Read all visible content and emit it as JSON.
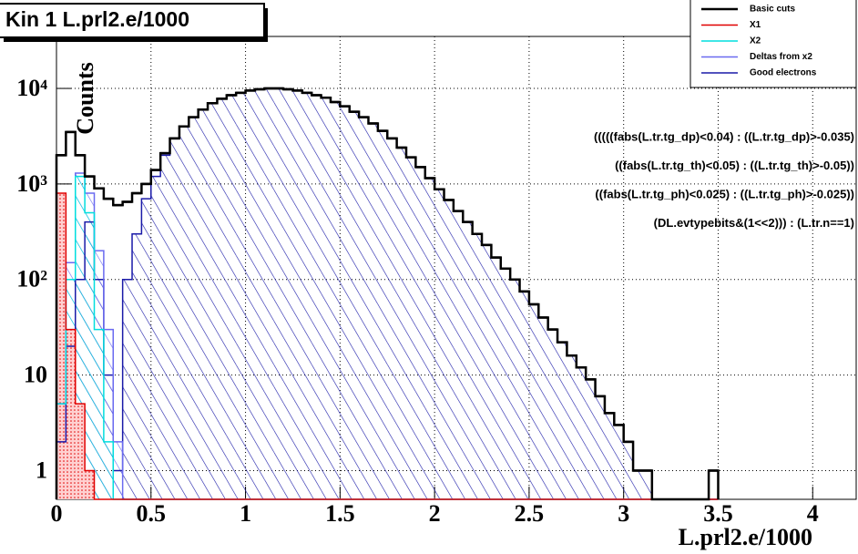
{
  "chart_data": {
    "type": "histogram",
    "title": "Kin 1 L.prl2.e/1000",
    "x_label": "L.prl2.e/1000",
    "y_label": "Counts",
    "annotations": [
      "(((((fabs(L.tr.tg_dp)<0.04)   : ((L.tr.tg_dp)>-0.035)",
      "((fabs(L.tr.tg_th)<0.05)  : ((L.tr.tg_th)>-0.05))",
      "((fabs(L.tr.tg_ph)<0.025)  : ((L.tr.tg_ph)>-0.025))",
      "(DL.evtypebits&(1<<2)))  : (L.tr.n==1)"
    ],
    "bins": [
      0,
      0.05,
      0.1,
      0.15,
      0.2,
      0.25,
      0.3,
      0.35,
      0.4,
      0.45,
      0.5,
      0.55,
      0.6,
      0.65,
      0.7,
      0.75,
      0.8,
      0.85,
      0.9,
      0.95,
      1,
      1.05,
      1.1,
      1.15,
      1.2,
      1.25,
      1.3,
      1.35,
      1.4,
      1.45,
      1.5,
      1.55,
      1.6,
      1.65,
      1.7,
      1.75,
      1.8,
      1.85,
      1.9,
      1.95,
      2,
      2.05,
      2.1,
      2.15,
      2.2,
      2.25,
      2.3,
      2.35,
      2.4,
      2.45,
      2.5,
      2.55,
      2.6,
      2.65,
      2.7,
      2.75,
      2.8,
      2.85,
      2.9,
      2.95,
      3,
      3.05,
      3.1,
      3.15,
      3.2,
      3.25,
      3.3,
      3.35,
      3.4,
      3.45,
      3.5
    ],
    "series": [
      {
        "name": "Basic cuts",
        "color": "#000000",
        "fill": "none",
        "values": [
          2000,
          3500,
          2000,
          1200,
          900,
          700,
          600,
          650,
          800,
          1000,
          1400,
          2100,
          3000,
          4000,
          5000,
          6000,
          7000,
          7800,
          8500,
          9000,
          9500,
          9800,
          10000,
          10000,
          9800,
          9500,
          9000,
          8500,
          8000,
          7200,
          6500,
          5700,
          5000,
          4300,
          3600,
          3000,
          2400,
          1900,
          1500,
          1150,
          880,
          680,
          520,
          400,
          300,
          230,
          170,
          130,
          100,
          75,
          55,
          40,
          30,
          22,
          16,
          12,
          9,
          6,
          4,
          3,
          2,
          1,
          1,
          0,
          0,
          0,
          0,
          0,
          0,
          1
        ]
      },
      {
        "name": "X1",
        "color": "#e00000",
        "fill": "dots",
        "values": [
          800,
          30,
          5,
          1,
          0,
          0,
          0,
          0,
          0,
          0,
          0,
          0,
          0,
          0,
          0,
          0,
          0,
          0,
          0,
          0,
          0,
          0,
          0,
          0,
          0,
          0,
          0,
          0,
          0,
          0,
          0,
          0,
          0,
          0,
          0,
          0,
          0,
          0,
          0,
          0,
          0,
          0,
          0,
          0,
          0,
          0,
          0,
          0,
          0,
          0,
          0,
          0,
          0,
          0,
          0,
          0,
          0,
          0,
          0,
          0,
          0,
          0,
          0,
          0,
          0,
          0,
          0,
          0,
          0,
          0
        ]
      },
      {
        "name": "X2",
        "color": "#00dede",
        "fill": "hatch",
        "values": [
          5,
          100,
          1200,
          500,
          30,
          2,
          0,
          0,
          0,
          0,
          0,
          0,
          0,
          0,
          0,
          0,
          0,
          0,
          0,
          0,
          0,
          0,
          0,
          0,
          0,
          0,
          0,
          0,
          0,
          0,
          0,
          0,
          0,
          0,
          0,
          0,
          0,
          0,
          0,
          0,
          0,
          0,
          0,
          0,
          0,
          0,
          0,
          0,
          0,
          0,
          0,
          0,
          0,
          0,
          0,
          0,
          0,
          0,
          0,
          0,
          0,
          0,
          0,
          0,
          0,
          0,
          0,
          0,
          0,
          0
        ]
      },
      {
        "name": "Deltas from x2",
        "color": "#6a6af0",
        "fill": "hatch",
        "values": [
          5,
          150,
          1300,
          800,
          200,
          30,
          2,
          0,
          0,
          0,
          0,
          0,
          0,
          0,
          0,
          0,
          0,
          0,
          0,
          0,
          0,
          0,
          0,
          0,
          0,
          0,
          0,
          0,
          0,
          0,
          0,
          0,
          0,
          0,
          0,
          0,
          0,
          0,
          0,
          0,
          0,
          0,
          0,
          0,
          0,
          0,
          0,
          0,
          0,
          0,
          0,
          0,
          0,
          0,
          0,
          0,
          0,
          0,
          0,
          0,
          0,
          0,
          0,
          0,
          0,
          0,
          0,
          0,
          0,
          0
        ]
      },
      {
        "name": "Good electrons",
        "color": "#1a1aa8",
        "fill": "hatch",
        "values": [
          2,
          20,
          100,
          400,
          100,
          10,
          1,
          100,
          300,
          700,
          1200,
          2000,
          3000,
          4000,
          5000,
          6000,
          7000,
          7800,
          8500,
          9000,
          9500,
          9800,
          10000,
          10000,
          9800,
          9500,
          9000,
          8500,
          8000,
          7200,
          6500,
          5700,
          5000,
          4300,
          3600,
          3000,
          2400,
          1900,
          1500,
          1150,
          880,
          680,
          520,
          400,
          300,
          230,
          170,
          130,
          100,
          75,
          55,
          40,
          30,
          22,
          16,
          12,
          9,
          6,
          4,
          3,
          2,
          1,
          1,
          0,
          0,
          0,
          0,
          0,
          0,
          0
        ]
      }
    ],
    "xlim": [
      0,
      4.23
    ],
    "ylim": [
      0.5,
      35000
    ],
    "xticks": [
      0,
      0.5,
      1,
      1.5,
      2,
      2.5,
      3,
      3.5,
      4
    ],
    "yticks": [
      1,
      10,
      {
        "value": 100,
        "label": "10²"
      },
      {
        "value": 1000,
        "label": "10³"
      },
      {
        "value": 10000,
        "label": "10⁴"
      }
    ],
    "log_y": true,
    "grid": true,
    "legend": "top-right"
  }
}
